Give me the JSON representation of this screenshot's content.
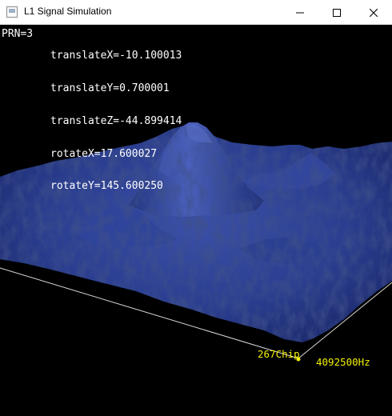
{
  "window": {
    "title": "L1 Signal Simulation",
    "icon": "app-window-icon",
    "controls": [
      "minimize-icon",
      "maximize-icon",
      "close-icon"
    ]
  },
  "hud": {
    "prn": "PRN=3",
    "translateX": "translateX=-10.100013",
    "translateY": "translateY=0.700001",
    "translateZ": "translateZ=-44.899414",
    "rotateX": "rotateX=17.600027",
    "rotateY": "rotateY=145.600250"
  },
  "axes": {
    "chip_label": "267Chip",
    "hz_label": "4092500Hz"
  },
  "colors": {
    "background": "#000000",
    "surface": "#2a3d8f",
    "axis_lines": "#d8d8d8",
    "axis_label": "#f2f000",
    "hud_text": "#ffffff"
  }
}
